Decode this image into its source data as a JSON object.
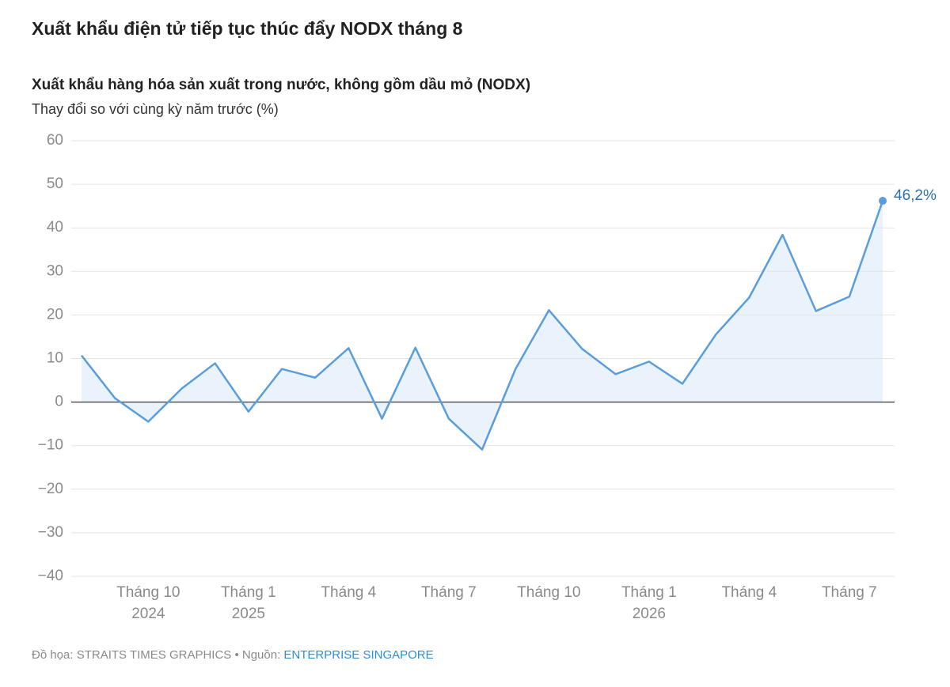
{
  "chart_data": {
    "type": "line",
    "title": "Xuất khẩu điện tử tiếp tục thúc đẩy NODX tháng 8",
    "subtitle": "Xuất khẩu hàng hóa sản xuất trong nước, không gồm dầu mỏ (NODX)",
    "y_label": "Thay đổi so với cùng kỳ năm trước (%)",
    "categories": [
      null,
      null,
      "Tháng 10\n2024",
      null,
      null,
      "Tháng 1\n2025",
      null,
      null,
      "Tháng 4",
      null,
      null,
      "Tháng 7",
      null,
      null,
      "Tháng 10",
      null,
      null,
      "Tháng 1\n2026",
      null,
      null,
      "Tháng 4",
      null,
      null,
      "Tháng 7",
      null
    ],
    "series": [
      {
        "name": "NODX",
        "color": "#5a9ddb",
        "fill": "#eaf3fc",
        "values": [
          10.7,
          0.9,
          -4.5,
          3.1,
          8.9,
          -2.2,
          7.6,
          5.6,
          12.4,
          -3.8,
          12.5,
          -3.8,
          -10.9,
          7.6,
          21.1,
          12.2,
          6.4,
          9.3,
          4.2,
          15.5,
          24.0,
          38.4,
          20.9,
          24.2,
          46.2
        ],
        "value_labels": [
          null,
          null,
          null,
          null,
          null,
          null,
          null,
          null,
          null,
          null,
          null,
          null,
          null,
          null,
          null,
          null,
          null,
          null,
          null,
          null,
          null,
          null,
          null,
          null,
          "46,2%"
        ],
        "label_color": "#2f6fb0"
      }
    ],
    "ylim": [
      -40,
      60
    ],
    "yticks": [
      {
        "value": -40,
        "label": "−40"
      },
      {
        "value": -30,
        "label": "−30"
      },
      {
        "value": -20,
        "label": "−20"
      },
      {
        "value": -10,
        "label": "−10"
      },
      0,
      10,
      20,
      30,
      40,
      50,
      60
    ],
    "grid": true,
    "credit": "Đồ họa: STRAITS TIMES GRAPHICS • Nguồn: ",
    "source": "ENTERPRISE SINGAPORE"
  }
}
